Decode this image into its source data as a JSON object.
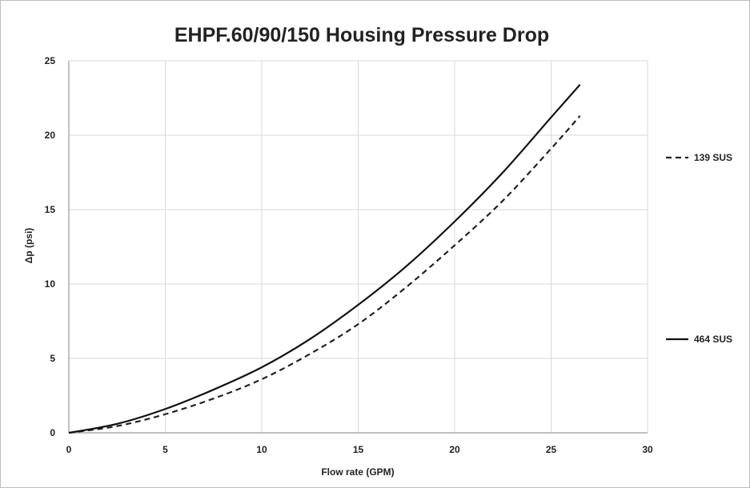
{
  "chart_data": {
    "type": "line",
    "title": "EHPF.60/90/150 Housing Pressure Drop",
    "xlabel": "Flow rate (GPM)",
    "ylabel": "Δp (psi)",
    "xlim": [
      0,
      30
    ],
    "ylim": [
      0,
      25
    ],
    "xticks": [
      "0",
      "5",
      "10",
      "15",
      "20",
      "25",
      "30"
    ],
    "yticks": [
      "0",
      "5",
      "10",
      "15",
      "20",
      "25"
    ],
    "grid": true,
    "legend_position": "right",
    "x": [
      0,
      2.5,
      5,
      7.5,
      10,
      12.5,
      15,
      17.5,
      20,
      22.5,
      25,
      26.5
    ],
    "series": [
      {
        "name": "139 SUS",
        "style": "dashed",
        "color": "#222222",
        "values": [
          0,
          0.45,
          1.25,
          2.3,
          3.6,
          5.3,
          7.3,
          9.8,
          12.6,
          15.6,
          19.1,
          21.3
        ]
      },
      {
        "name": "464 SUS",
        "style": "solid",
        "color": "#111111",
        "values": [
          0,
          0.6,
          1.6,
          2.9,
          4.4,
          6.3,
          8.6,
          11.2,
          14.2,
          17.5,
          21.2,
          23.4
        ]
      }
    ]
  }
}
